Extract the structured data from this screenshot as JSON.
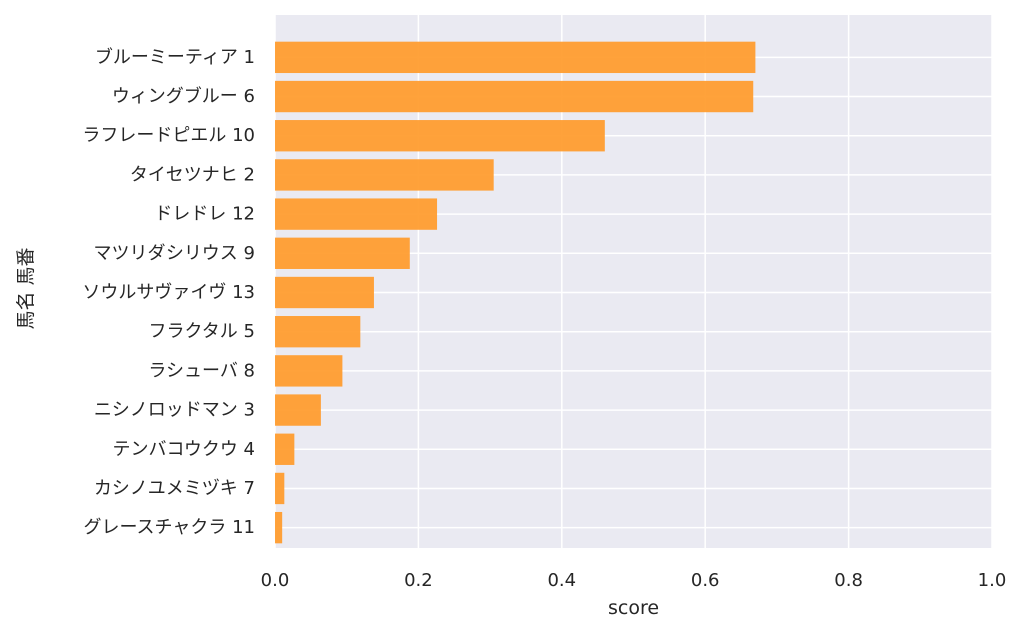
{
  "chart_data": {
    "type": "bar",
    "orientation": "horizontal",
    "categories": [
      "ブルーミーティア 1",
      "ウィングブルー 6",
      "ラフレードピエル 10",
      "タイセツナヒ 2",
      "ドレドレ 12",
      "マツリダシリウス 9",
      "ソウルサヴァイヴ 13",
      "フラクタル 5",
      "ラシューバ 8",
      "ニシノロッドマン 3",
      "テンバコウクウ 4",
      "カシノユメミヅキ 7",
      "グレースチャクラ 11"
    ],
    "values": [
      0.67,
      0.667,
      0.46,
      0.305,
      0.226,
      0.188,
      0.138,
      0.119,
      0.094,
      0.064,
      0.027,
      0.013,
      0.01
    ],
    "xlabel": "score",
    "ylabel": "馬名 馬番",
    "xlim": [
      0.0,
      1.0
    ],
    "xticks": [
      "0.0",
      "0.2",
      "0.4",
      "0.6",
      "0.8",
      "1.0"
    ],
    "grid": true,
    "legend": "none",
    "colors": {
      "bar": "#ff9a2a",
      "plot_background": "#eaeaf2",
      "grid": "#ffffff",
      "text": "#262626"
    }
  }
}
